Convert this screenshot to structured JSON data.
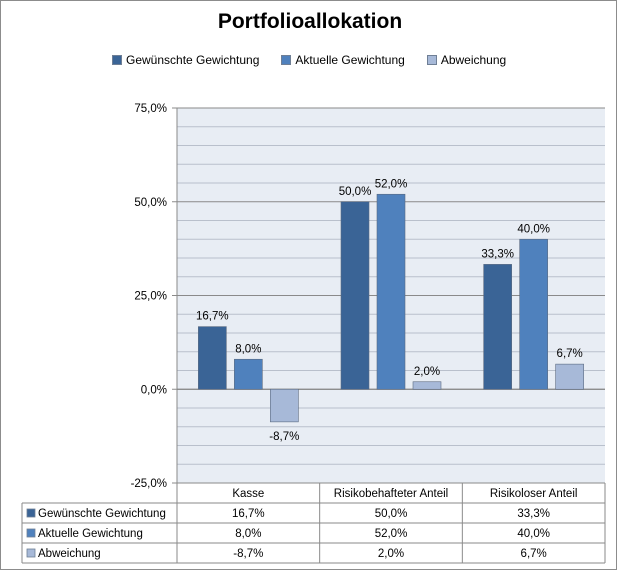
{
  "chart_data": {
    "type": "bar",
    "title": "Portfolioallokation",
    "categories": [
      "Kasse",
      "Risikobehafteter Anteil",
      "Risikoloser Anteil"
    ],
    "series": [
      {
        "name": "Gewünschte Gewichtung",
        "values": [
          16.7,
          50.0,
          33.3
        ],
        "labels": [
          "16,7%",
          "50,0%",
          "33,3%"
        ],
        "color": "#3a6496"
      },
      {
        "name": "Aktuelle Gewichtung",
        "values": [
          8.0,
          52.0,
          40.0
        ],
        "labels": [
          "8,0%",
          "52,0%",
          "40,0%"
        ],
        "color": "#4f81bd"
      },
      {
        "name": "Abweichung",
        "values": [
          -8.7,
          2.0,
          6.7
        ],
        "labels": [
          "-8,7%",
          "2,0%",
          "6,7%"
        ],
        "color": "#a7b9d8"
      }
    ],
    "ylim": [
      -25,
      75
    ],
    "yticks": [
      75,
      50,
      25,
      0,
      -25
    ],
    "ytick_labels": [
      "75,0%",
      "50,0%",
      "25,0%",
      "0,0%",
      "-25,0%"
    ],
    "xlabel": "",
    "ylabel": "",
    "grid": true,
    "legend": "top",
    "data_table": true
  }
}
